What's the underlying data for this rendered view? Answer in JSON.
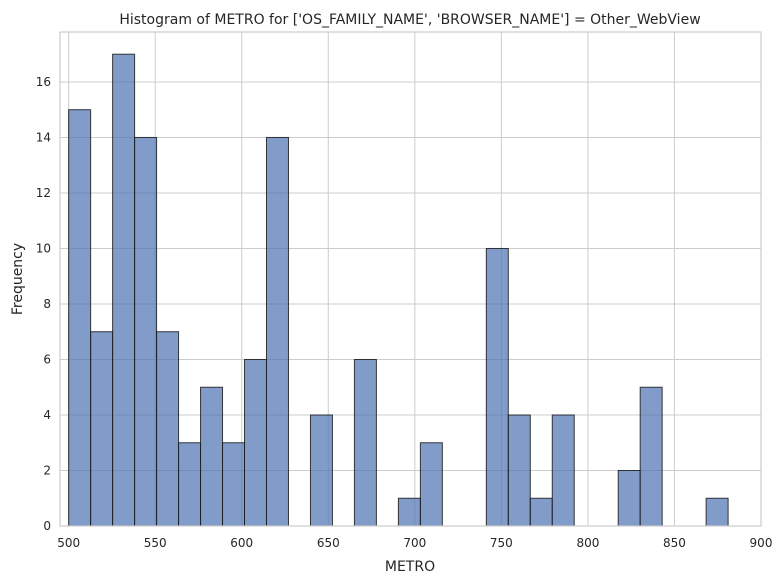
{
  "chart_data": {
    "type": "bar",
    "title": "Histogram of METRO for ['OS_FAMILY_NAME', 'BROWSER_NAME'] = Other_WebView",
    "xlabel": "METRO",
    "ylabel": "Frequency",
    "xlim": [
      495,
      900
    ],
    "ylim": [
      0,
      17.8
    ],
    "xticks": [
      500,
      550,
      600,
      650,
      700,
      750,
      800,
      850,
      900
    ],
    "yticks": [
      0,
      2,
      4,
      6,
      8,
      10,
      12,
      14,
      16
    ],
    "grid": true,
    "bin_width": 12.7,
    "bins": [
      {
        "x0": 500.0,
        "x1": 512.7,
        "count": 15
      },
      {
        "x0": 512.7,
        "x1": 525.4,
        "count": 7
      },
      {
        "x0": 525.4,
        "x1": 538.1,
        "count": 17
      },
      {
        "x0": 538.1,
        "x1": 550.8,
        "count": 14
      },
      {
        "x0": 550.8,
        "x1": 563.5,
        "count": 7
      },
      {
        "x0": 563.5,
        "x1": 576.2,
        "count": 3
      },
      {
        "x0": 576.2,
        "x1": 588.9,
        "count": 5
      },
      {
        "x0": 588.9,
        "x1": 601.6,
        "count": 3
      },
      {
        "x0": 601.6,
        "x1": 614.3,
        "count": 6
      },
      {
        "x0": 614.3,
        "x1": 627.0,
        "count": 14
      },
      {
        "x0": 627.0,
        "x1": 639.7,
        "count": 0
      },
      {
        "x0": 639.7,
        "x1": 652.4,
        "count": 4
      },
      {
        "x0": 652.4,
        "x1": 665.1,
        "count": 0
      },
      {
        "x0": 665.1,
        "x1": 677.8,
        "count": 6
      },
      {
        "x0": 677.8,
        "x1": 690.5,
        "count": 0
      },
      {
        "x0": 690.5,
        "x1": 703.2,
        "count": 1
      },
      {
        "x0": 703.2,
        "x1": 715.9,
        "count": 3
      },
      {
        "x0": 715.9,
        "x1": 728.6,
        "count": 0
      },
      {
        "x0": 728.6,
        "x1": 741.3,
        "count": 0
      },
      {
        "x0": 741.3,
        "x1": 754.0,
        "count": 10
      },
      {
        "x0": 754.0,
        "x1": 766.7,
        "count": 4
      },
      {
        "x0": 766.7,
        "x1": 779.4,
        "count": 1
      },
      {
        "x0": 779.4,
        "x1": 792.1,
        "count": 4
      },
      {
        "x0": 792.1,
        "x1": 804.8,
        "count": 0
      },
      {
        "x0": 804.8,
        "x1": 817.5,
        "count": 0
      },
      {
        "x0": 817.5,
        "x1": 830.2,
        "count": 2
      },
      {
        "x0": 830.2,
        "x1": 842.9,
        "count": 5
      },
      {
        "x0": 842.9,
        "x1": 855.6,
        "count": 0
      },
      {
        "x0": 855.6,
        "x1": 868.3,
        "count": 0
      },
      {
        "x0": 868.3,
        "x1": 881.0,
        "count": 1
      }
    ],
    "colors": {
      "bar_fill": "#4c72b0",
      "bar_edge": "#1a1a1a",
      "grid": "#cccccc"
    }
  }
}
